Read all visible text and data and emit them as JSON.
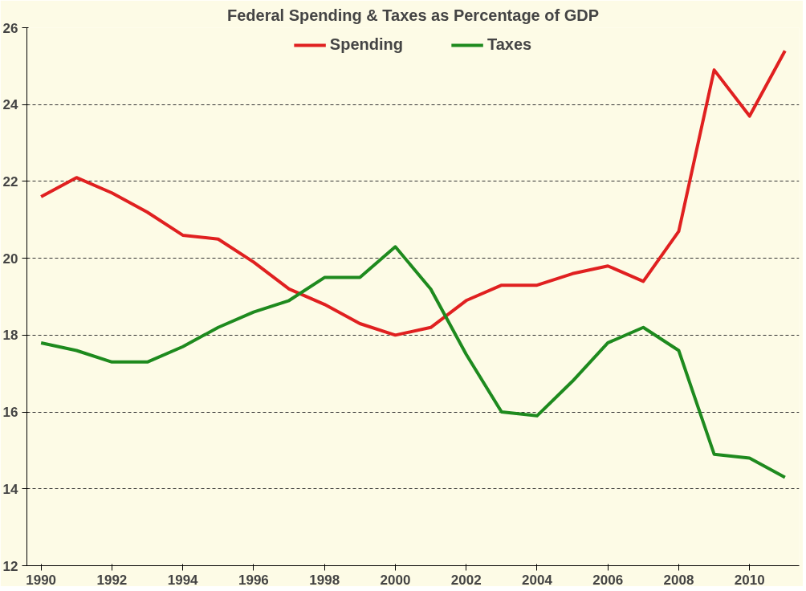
{
  "chart_data": {
    "type": "line",
    "title": "Federal Spending & Taxes as Percentage of GDP",
    "x": [
      1990,
      1991,
      1992,
      1993,
      1994,
      1995,
      1996,
      1997,
      1998,
      1999,
      2000,
      2001,
      2002,
      2003,
      2004,
      2005,
      2006,
      2007,
      2008,
      2009,
      2010,
      2011
    ],
    "series": [
      {
        "name": "Spending",
        "color": "#e02020",
        "values": [
          21.6,
          22.1,
          21.7,
          21.2,
          20.6,
          20.5,
          19.9,
          19.2,
          18.8,
          18.3,
          18.0,
          18.2,
          18.9,
          19.3,
          19.3,
          19.6,
          19.8,
          19.4,
          20.7,
          24.9,
          23.7,
          25.4
        ]
      },
      {
        "name": "Taxes",
        "color": "#1e8a1e",
        "values": [
          17.8,
          17.6,
          17.3,
          17.3,
          17.7,
          18.2,
          18.6,
          18.9,
          19.5,
          19.5,
          20.3,
          19.2,
          17.5,
          16.0,
          15.9,
          16.8,
          17.8,
          18.2,
          17.6,
          14.9,
          14.8,
          14.3
        ]
      }
    ],
    "xlim": [
      1989.6,
      2011.4
    ],
    "xticks": [
      1990,
      1992,
      1994,
      1996,
      1998,
      2000,
      2002,
      2004,
      2006,
      2008,
      2010
    ],
    "ylim": [
      12,
      26
    ],
    "yticks": [
      12,
      14,
      16,
      18,
      20,
      22,
      24,
      26
    ],
    "grid": "y",
    "legend": "top",
    "marker": "none",
    "line_style": "solid"
  }
}
